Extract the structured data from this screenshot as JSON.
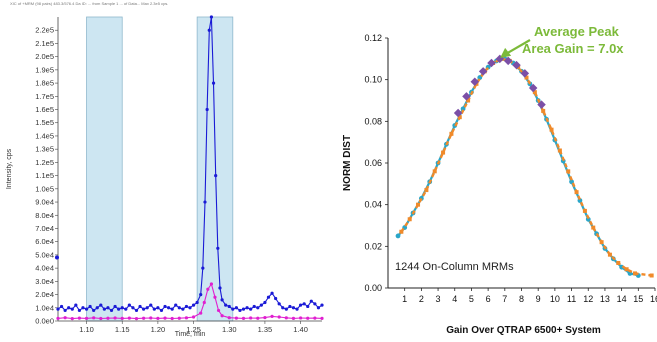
{
  "chart_data": [
    {
      "type": "line",
      "header_text": "XIC of +MRM (98 pairs) 483.3/576.4 Da ID: ... from Sample 1 ... of Data... Max 2.3e5 cps.",
      "xlabel": "Time, min",
      "ylabel": "Intensity, cps",
      "xlim": [
        1.06,
        1.43
      ],
      "ylim": [
        0,
        230000
      ],
      "x_ticks": [
        "1.10",
        "1.15",
        "1.20",
        "1.25",
        "1.30",
        "1.35",
        "1.40"
      ],
      "x_tick_values": [
        1.1,
        1.15,
        1.2,
        1.25,
        1.3,
        1.35,
        1.4
      ],
      "y_ticks": [
        "0.0e0",
        "1.0e4",
        "2.0e4",
        "3.0e4",
        "4.0e4",
        "5.0e4",
        "6.0e4",
        "7.0e4",
        "8.0e4",
        "9.0e4",
        "1.0e5",
        "1.1e5",
        "1.2e5",
        "1.3e5",
        "1.4e5",
        "1.5e5",
        "1.6e5",
        "1.7e5",
        "1.8e5",
        "1.9e5",
        "2.0e5",
        "2.1e5",
        "2.2e5"
      ],
      "y_tick_values": [
        0,
        10000,
        20000,
        30000,
        40000,
        50000,
        60000,
        70000,
        80000,
        90000,
        100000,
        110000,
        120000,
        130000,
        140000,
        150000,
        160000,
        170000,
        180000,
        190000,
        200000,
        210000,
        220000
      ],
      "shaded_regions": [
        [
          1.1,
          1.15
        ],
        [
          1.255,
          1.305
        ]
      ],
      "colors": {
        "series_blue": "#1a1ad6",
        "series_magenta": "#e020d0",
        "shade": "#cde6f2",
        "shade_border": "#8fb8cc"
      },
      "series": [
        {
          "x": [
            1.06,
            1.065,
            1.07,
            1.075,
            1.08,
            1.085,
            1.09,
            1.095,
            1.1,
            1.105,
            1.11,
            1.115,
            1.12,
            1.125,
            1.13,
            1.135,
            1.14,
            1.145,
            1.15,
            1.155,
            1.16,
            1.165,
            1.17,
            1.175,
            1.18,
            1.185,
            1.19,
            1.195,
            1.2,
            1.205,
            1.21,
            1.215,
            1.22,
            1.225,
            1.23,
            1.235,
            1.24,
            1.245,
            1.25,
            1.255,
            1.26,
            1.263,
            1.266,
            1.269,
            1.272,
            1.275,
            1.278,
            1.281,
            1.284,
            1.287,
            1.29,
            1.295,
            1.3,
            1.305,
            1.31,
            1.315,
            1.32,
            1.325,
            1.33,
            1.335,
            1.34,
            1.345,
            1.35,
            1.355,
            1.36,
            1.365,
            1.37,
            1.375,
            1.38,
            1.385,
            1.39,
            1.395,
            1.4,
            1.405,
            1.41,
            1.415,
            1.42,
            1.425,
            1.43
          ],
          "y": [
            9000,
            11000,
            8000,
            10000,
            9000,
            12000,
            8000,
            10000,
            9000,
            11000,
            8000,
            10000,
            12000,
            9000,
            10000,
            8000,
            11000,
            9000,
            10000,
            9000,
            12000,
            10000,
            8000,
            11000,
            9000,
            10000,
            12000,
            9000,
            10000,
            8000,
            11000,
            10000,
            9000,
            12000,
            10000,
            9000,
            11000,
            10000,
            12000,
            14000,
            20000,
            40000,
            90000,
            160000,
            220000,
            230000,
            180000,
            110000,
            55000,
            25000,
            16000,
            12000,
            11000,
            9000,
            10000,
            8000,
            9000,
            10000,
            9000,
            11000,
            10000,
            12000,
            14000,
            18000,
            21000,
            17000,
            13000,
            10000,
            9000,
            11000,
            10000,
            9000,
            12000,
            13000,
            11000,
            15000,
            13000,
            10000,
            12000
          ]
        },
        {
          "x": [
            1.06,
            1.07,
            1.08,
            1.09,
            1.1,
            1.11,
            1.12,
            1.13,
            1.14,
            1.15,
            1.16,
            1.17,
            1.18,
            1.19,
            1.2,
            1.21,
            1.22,
            1.23,
            1.24,
            1.25,
            1.26,
            1.265,
            1.27,
            1.275,
            1.28,
            1.285,
            1.29,
            1.3,
            1.31,
            1.32,
            1.33,
            1.34,
            1.35,
            1.36,
            1.37,
            1.38,
            1.39,
            1.4,
            1.41,
            1.42,
            1.43
          ],
          "y": [
            2000,
            2500,
            1800,
            2200,
            2000,
            2400,
            1900,
            2100,
            2300,
            2000,
            2200,
            1800,
            2100,
            2300,
            2000,
            2200,
            1900,
            2100,
            2400,
            3000,
            6000,
            14000,
            24000,
            28000,
            18000,
            8000,
            4000,
            2500,
            2200,
            2000,
            2300,
            2100,
            2600,
            3500,
            3000,
            2400,
            2000,
            2300,
            2100,
            2200,
            2000
          ]
        }
      ]
    },
    {
      "type": "scatter",
      "title": "",
      "xlabel": "Gain Over QTRAP 6500+ System",
      "ylabel": "NORM DIST",
      "xlim": [
        0,
        16
      ],
      "ylim": [
        0,
        0.12
      ],
      "x_ticks": [
        "1",
        "2",
        "3",
        "4",
        "5",
        "6",
        "7",
        "8",
        "9",
        "10",
        "11",
        "12",
        "13",
        "14",
        "15",
        "16"
      ],
      "x_tick_values": [
        1,
        2,
        3,
        4,
        5,
        6,
        7,
        8,
        9,
        10,
        11,
        12,
        13,
        14,
        15,
        16
      ],
      "y_ticks": [
        "0.00",
        "0.02",
        "0.04",
        "0.06",
        "0.08",
        "0.10",
        "0.12"
      ],
      "y_tick_values": [
        0,
        0.02,
        0.04,
        0.06,
        0.08,
        0.1,
        0.12
      ],
      "annotation": "Average Peak\nArea Gain = 7.0x",
      "annotation_line1": "Average Peak",
      "annotation_line2": "Area Gain = 7.0x",
      "annotation_arrow_target": [
        6.6,
        0.11
      ],
      "box_label": "1244 On-Column MRMs",
      "colors": {
        "annotation": "#7cba3a",
        "series_a": "#2aa6c8",
        "series_b": "#f08a2a",
        "series_c": "#7b4fa6",
        "axis": "#222222"
      },
      "series": [
        {
          "x": [
            0.6,
            1.0,
            1.5,
            2.0,
            2.5,
            3.0,
            3.5,
            4.0,
            4.5,
            5.0,
            5.5,
            6.0,
            6.5,
            7.0,
            7.5,
            8.0,
            8.5,
            9.0,
            9.5,
            10.0,
            10.5,
            11.0,
            11.5,
            12.0,
            12.5,
            13.0,
            13.5,
            14.0,
            14.5,
            15.0
          ],
          "y": [
            0.025,
            0.029,
            0.036,
            0.043,
            0.051,
            0.06,
            0.069,
            0.078,
            0.086,
            0.094,
            0.101,
            0.106,
            0.109,
            0.11,
            0.108,
            0.104,
            0.098,
            0.09,
            0.081,
            0.071,
            0.061,
            0.051,
            0.042,
            0.033,
            0.026,
            0.019,
            0.014,
            0.01,
            0.007,
            0.006
          ]
        },
        {
          "x": [
            0.8,
            1.3,
            1.8,
            2.3,
            2.8,
            3.3,
            3.8,
            4.3,
            4.8,
            5.3,
            5.8,
            6.3,
            6.8,
            7.3,
            7.8,
            8.3,
            8.8,
            9.3,
            9.8,
            10.3,
            10.8,
            11.3,
            11.8,
            12.3,
            12.8,
            13.3,
            13.8,
            14.3,
            14.8,
            15.8
          ],
          "y": [
            0.027,
            0.033,
            0.04,
            0.047,
            0.056,
            0.065,
            0.074,
            0.082,
            0.09,
            0.098,
            0.104,
            0.108,
            0.11,
            0.109,
            0.106,
            0.101,
            0.094,
            0.085,
            0.076,
            0.066,
            0.056,
            0.046,
            0.037,
            0.029,
            0.022,
            0.016,
            0.012,
            0.009,
            0.007,
            0.006
          ]
        },
        {
          "x": [
            4.2,
            4.7,
            5.2,
            5.7,
            6.2,
            6.7,
            7.2,
            7.7,
            8.2,
            8.7,
            9.2
          ],
          "y": [
            0.084,
            0.092,
            0.099,
            0.104,
            0.108,
            0.11,
            0.109,
            0.107,
            0.103,
            0.096,
            0.088
          ]
        }
      ]
    }
  ]
}
